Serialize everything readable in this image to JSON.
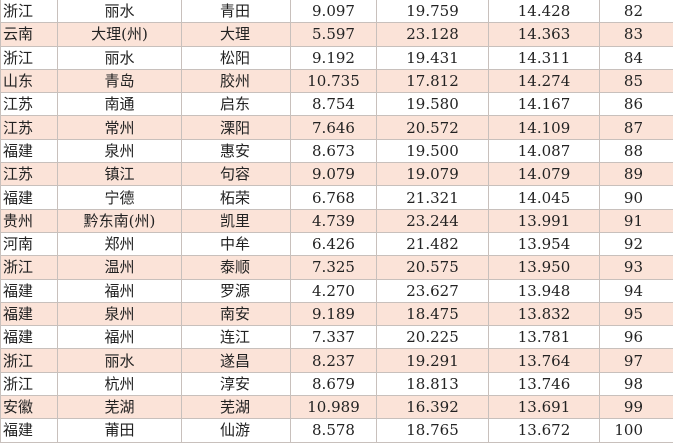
{
  "table": {
    "rows": [
      [
        "浙江",
        "丽水",
        "青田",
        "9.097",
        "19.759",
        "14.428",
        "82"
      ],
      [
        "云南",
        "大理(州)",
        "大理",
        "5.597",
        "23.128",
        "14.363",
        "83"
      ],
      [
        "浙江",
        "丽水",
        "松阳",
        "9.192",
        "19.431",
        "14.311",
        "84"
      ],
      [
        "山东",
        "青岛",
        "胶州",
        "10.735",
        "17.812",
        "14.274",
        "85"
      ],
      [
        "江苏",
        "南通",
        "启东",
        "8.754",
        "19.580",
        "14.167",
        "86"
      ],
      [
        "江苏",
        "常州",
        "溧阳",
        "7.646",
        "20.572",
        "14.109",
        "87"
      ],
      [
        "福建",
        "泉州",
        "惠安",
        "8.673",
        "19.500",
        "14.087",
        "88"
      ],
      [
        "江苏",
        "镇江",
        "句容",
        "9.079",
        "19.079",
        "14.079",
        "89"
      ],
      [
        "福建",
        "宁德",
        "柘荣",
        "6.768",
        "21.321",
        "14.045",
        "90"
      ],
      [
        "贵州",
        "黔东南(州)",
        "凯里",
        "4.739",
        "23.244",
        "13.991",
        "91"
      ],
      [
        "河南",
        "郑州",
        "中牟",
        "6.426",
        "21.482",
        "13.954",
        "92"
      ],
      [
        "浙江",
        "温州",
        "泰顺",
        "7.325",
        "20.575",
        "13.950",
        "93"
      ],
      [
        "福建",
        "福州",
        "罗源",
        "4.270",
        "23.627",
        "13.948",
        "94"
      ],
      [
        "福建",
        "泉州",
        "南安",
        "9.189",
        "18.475",
        "13.832",
        "95"
      ],
      [
        "福建",
        "福州",
        "连江",
        "7.337",
        "20.225",
        "13.781",
        "96"
      ],
      [
        "浙江",
        "丽水",
        "遂昌",
        "8.237",
        "19.291",
        "13.764",
        "97"
      ],
      [
        "浙江",
        "杭州",
        "淳安",
        "8.679",
        "18.813",
        "13.746",
        "98"
      ],
      [
        "安徽",
        "芜湖",
        "芜湖",
        "10.989",
        "16.392",
        "13.691",
        "99"
      ],
      [
        "福建",
        "莆田",
        "仙游",
        "8.578",
        "18.765",
        "13.672",
        "100"
      ]
    ]
  }
}
